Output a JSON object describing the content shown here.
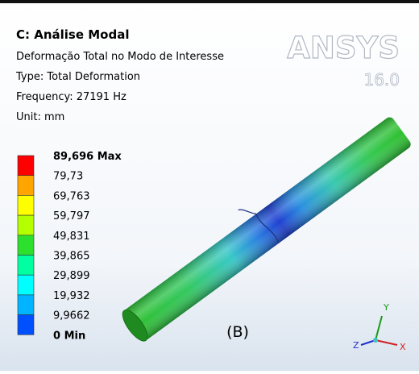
{
  "header": {
    "title": "C: Análise Modal",
    "lines": [
      "Deformação Total no Modo de Interesse",
      "Type: Total Deformation",
      "Frequency: 27191 Hz",
      "Unit: mm"
    ]
  },
  "logo": {
    "name": "ANSYS",
    "version": "16.0"
  },
  "legend": {
    "labels": [
      "89,696 Max",
      "79,73",
      "69,763",
      "59,797",
      "49,831",
      "39,865",
      "29,899",
      "19,932",
      "9,9662",
      "0 Min"
    ]
  },
  "view_label": "(B)",
  "triad": {
    "y": "Y",
    "z": "Z",
    "x": "X"
  }
}
